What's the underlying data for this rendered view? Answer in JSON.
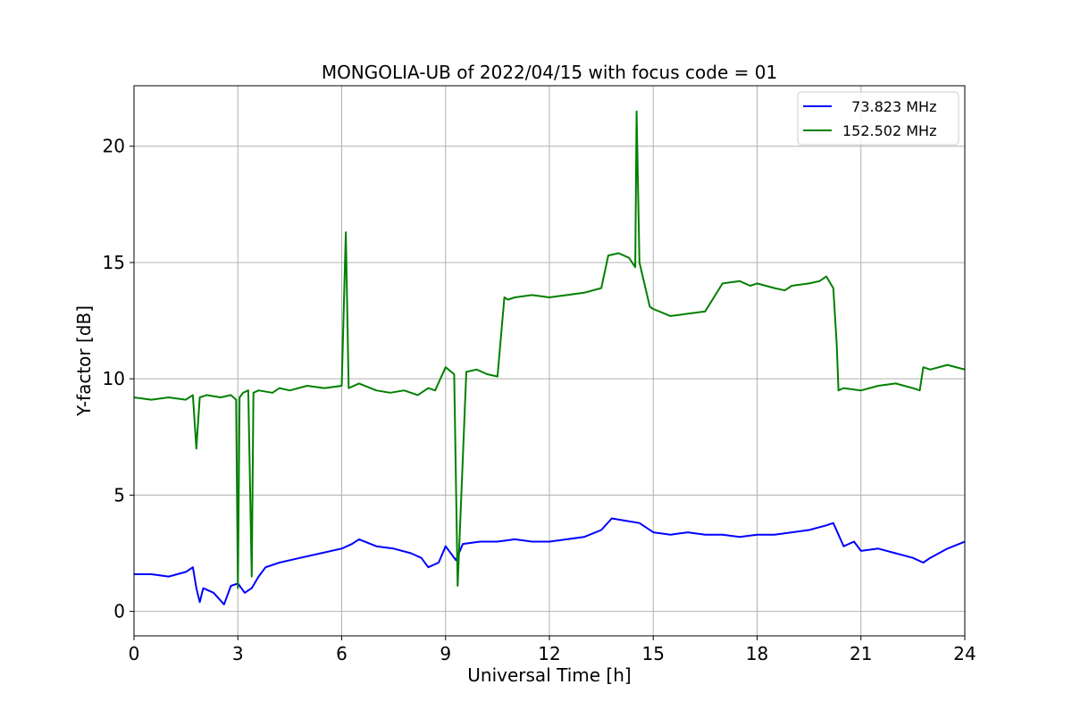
{
  "chart_data": {
    "type": "line",
    "title": "MONGOLIA-UB of 2022/04/15 with focus code = 01",
    "xlabel": "Universal Time [h]",
    "ylabel": "Y-factor [dB]",
    "xlim": [
      0,
      24
    ],
    "ylim": [
      -1.05,
      22.6
    ],
    "x_ticks": [
      0,
      3,
      6,
      9,
      12,
      15,
      18,
      21,
      24
    ],
    "y_ticks": [
      0,
      5,
      10,
      15,
      20
    ],
    "grid": true,
    "legend_position": "top-right",
    "series": [
      {
        "name": "  73.823 MHz",
        "color": "#0000ff",
        "x": [
          0,
          0.5,
          1.0,
          1.5,
          1.7,
          1.8,
          1.9,
          2.0,
          2.3,
          2.6,
          2.8,
          3.0,
          3.2,
          3.4,
          3.6,
          3.8,
          4.2,
          4.8,
          5.4,
          6.0,
          6.3,
          6.5,
          7.0,
          7.5,
          8.0,
          8.3,
          8.5,
          8.8,
          9.0,
          9.3,
          9.5,
          10.0,
          10.5,
          11.0,
          11.5,
          12.0,
          12.5,
          13.0,
          13.5,
          13.8,
          14.2,
          14.6,
          15.0,
          15.5,
          16.0,
          16.5,
          17.0,
          17.5,
          18.0,
          18.5,
          19.0,
          19.5,
          20.0,
          20.2,
          20.5,
          20.8,
          21.0,
          21.5,
          22.0,
          22.5,
          22.8,
          23.0,
          23.5,
          24.0
        ],
        "values": [
          1.6,
          1.6,
          1.5,
          1.7,
          1.9,
          1.0,
          0.4,
          1.0,
          0.8,
          0.3,
          1.1,
          1.2,
          0.8,
          1.0,
          1.5,
          1.9,
          2.1,
          2.3,
          2.5,
          2.7,
          2.9,
          3.1,
          2.8,
          2.7,
          2.5,
          2.3,
          1.9,
          2.1,
          2.8,
          2.2,
          2.9,
          3.0,
          3.0,
          3.1,
          3.0,
          3.0,
          3.1,
          3.2,
          3.5,
          4.0,
          3.9,
          3.8,
          3.4,
          3.3,
          3.4,
          3.3,
          3.3,
          3.2,
          3.3,
          3.3,
          3.4,
          3.5,
          3.7,
          3.8,
          2.8,
          3.0,
          2.6,
          2.7,
          2.5,
          2.3,
          2.1,
          2.3,
          2.7,
          3.0
        ]
      },
      {
        "name": "152.502 MHz",
        "color": "#008000",
        "x": [
          0,
          0.5,
          1.0,
          1.5,
          1.7,
          1.8,
          1.9,
          2.1,
          2.5,
          2.8,
          2.95,
          3.0,
          3.05,
          3.15,
          3.3,
          3.4,
          3.45,
          3.6,
          4.0,
          4.2,
          4.5,
          5.0,
          5.5,
          6.0,
          6.12,
          6.2,
          6.5,
          7.0,
          7.4,
          7.8,
          8.2,
          8.5,
          8.7,
          9.0,
          9.25,
          9.35,
          9.6,
          9.9,
          10.2,
          10.5,
          10.7,
          10.8,
          11.0,
          11.5,
          12.0,
          12.5,
          13.0,
          13.5,
          13.7,
          14.0,
          14.3,
          14.48,
          14.52,
          14.6,
          14.9,
          15.0,
          15.5,
          16.0,
          16.5,
          17.0,
          17.5,
          17.8,
          18.0,
          18.5,
          18.8,
          19.0,
          19.5,
          19.8,
          20.0,
          20.2,
          20.3,
          20.35,
          20.5,
          21.0,
          21.5,
          22.0,
          22.5,
          22.7,
          22.8,
          23.0,
          23.5,
          24.0
        ],
        "values": [
          9.2,
          9.1,
          9.2,
          9.1,
          9.3,
          7.0,
          9.2,
          9.3,
          9.2,
          9.3,
          9.1,
          1.0,
          9.2,
          9.4,
          9.5,
          1.5,
          9.4,
          9.5,
          9.4,
          9.6,
          9.5,
          9.7,
          9.6,
          9.7,
          16.3,
          9.6,
          9.8,
          9.5,
          9.4,
          9.5,
          9.3,
          9.6,
          9.5,
          10.5,
          10.2,
          1.1,
          10.3,
          10.4,
          10.2,
          10.1,
          13.5,
          13.4,
          13.5,
          13.6,
          13.5,
          13.6,
          13.7,
          13.9,
          15.3,
          15.4,
          15.2,
          14.8,
          21.5,
          15.0,
          13.1,
          13.0,
          12.7,
          12.8,
          12.9,
          14.1,
          14.2,
          14.0,
          14.1,
          13.9,
          13.8,
          14.0,
          14.1,
          14.2,
          14.4,
          13.9,
          11.5,
          9.5,
          9.6,
          9.5,
          9.7,
          9.8,
          9.6,
          9.5,
          10.5,
          10.4,
          10.6,
          10.4
        ]
      }
    ]
  }
}
